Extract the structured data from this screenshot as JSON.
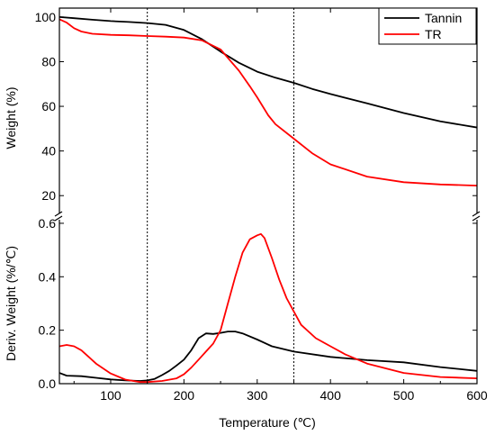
{
  "chart_data": {
    "type": "line",
    "xlabel": "Temperature (℃)",
    "xlim": [
      30,
      600
    ],
    "x_ticks": [
      "100",
      "200",
      "300",
      "400",
      "500",
      "600"
    ],
    "x_tick_values": [
      100,
      200,
      300,
      400,
      500,
      600
    ],
    "colors": {
      "Tannin": "#000000",
      "TR": "#ff0000"
    },
    "legend": {
      "position": "top-right",
      "entries": [
        "Tannin",
        "TR"
      ]
    },
    "reference_lines_x": [
      150,
      350
    ],
    "top_panel": {
      "ylabel": "Weight (%)",
      "ylim": [
        10,
        104
      ],
      "y_ticks": [
        "20",
        "40",
        "60",
        "80",
        "100"
      ],
      "y_tick_values": [
        20,
        40,
        60,
        80,
        100
      ],
      "series": [
        {
          "name": "Tannin",
          "x": [
            30,
            50,
            75,
            100,
            125,
            150,
            175,
            200,
            225,
            250,
            275,
            300,
            325,
            350,
            375,
            400,
            450,
            500,
            550,
            600
          ],
          "y": [
            100,
            99.5,
            98.8,
            98.2,
            97.8,
            97.3,
            96.5,
            94.2,
            90,
            84.5,
            79.5,
            75.5,
            72.8,
            70.5,
            67.8,
            65.5,
            61.3,
            57,
            53.3,
            50.5
          ]
        },
        {
          "name": "TR",
          "x": [
            30,
            40,
            50,
            60,
            75,
            100,
            125,
            150,
            175,
            200,
            225,
            250,
            275,
            290,
            300,
            315,
            325,
            350,
            375,
            400,
            450,
            500,
            550,
            600
          ],
          "y": [
            99,
            97.5,
            95,
            93.5,
            92.5,
            92,
            91.8,
            91.5,
            91.2,
            90.8,
            89.5,
            85.5,
            76,
            69,
            64,
            56,
            52,
            45.5,
            39,
            34,
            28.5,
            26,
            25,
            24.5
          ]
        }
      ]
    },
    "bottom_panel": {
      "ylabel": "Deriv. Weight (%/℃)",
      "ylim": [
        0,
        0.62
      ],
      "y_ticks": [
        "0.0",
        "0.2",
        "0.4",
        "0.6"
      ],
      "y_tick_values": [
        0.0,
        0.2,
        0.4,
        0.6
      ],
      "series": [
        {
          "name": "Tannin",
          "x": [
            30,
            40,
            60,
            80,
            100,
            120,
            140,
            150,
            160,
            170,
            180,
            190,
            200,
            210,
            220,
            230,
            240,
            250,
            260,
            270,
            280,
            300,
            320,
            350,
            400,
            450,
            500,
            550,
            600
          ],
          "y": [
            0.04,
            0.03,
            0.028,
            0.022,
            0.016,
            0.012,
            0.01,
            0.012,
            0.018,
            0.032,
            0.048,
            0.068,
            0.09,
            0.125,
            0.17,
            0.188,
            0.186,
            0.19,
            0.195,
            0.195,
            0.188,
            0.165,
            0.14,
            0.12,
            0.1,
            0.088,
            0.08,
            0.062,
            0.048
          ]
        },
        {
          "name": "TR",
          "x": [
            30,
            40,
            50,
            60,
            70,
            80,
            100,
            120,
            140,
            150,
            170,
            190,
            200,
            210,
            220,
            230,
            240,
            250,
            260,
            270,
            280,
            290,
            300,
            305,
            310,
            320,
            330,
            340,
            350,
            360,
            380,
            400,
            420,
            450,
            500,
            550,
            600
          ],
          "y": [
            0.14,
            0.145,
            0.14,
            0.125,
            0.1,
            0.075,
            0.038,
            0.015,
            0.006,
            0.006,
            0.01,
            0.02,
            0.035,
            0.06,
            0.09,
            0.12,
            0.15,
            0.2,
            0.3,
            0.4,
            0.49,
            0.54,
            0.555,
            0.56,
            0.545,
            0.47,
            0.39,
            0.32,
            0.27,
            0.22,
            0.17,
            0.14,
            0.11,
            0.075,
            0.04,
            0.025,
            0.02
          ]
        }
      ]
    }
  }
}
